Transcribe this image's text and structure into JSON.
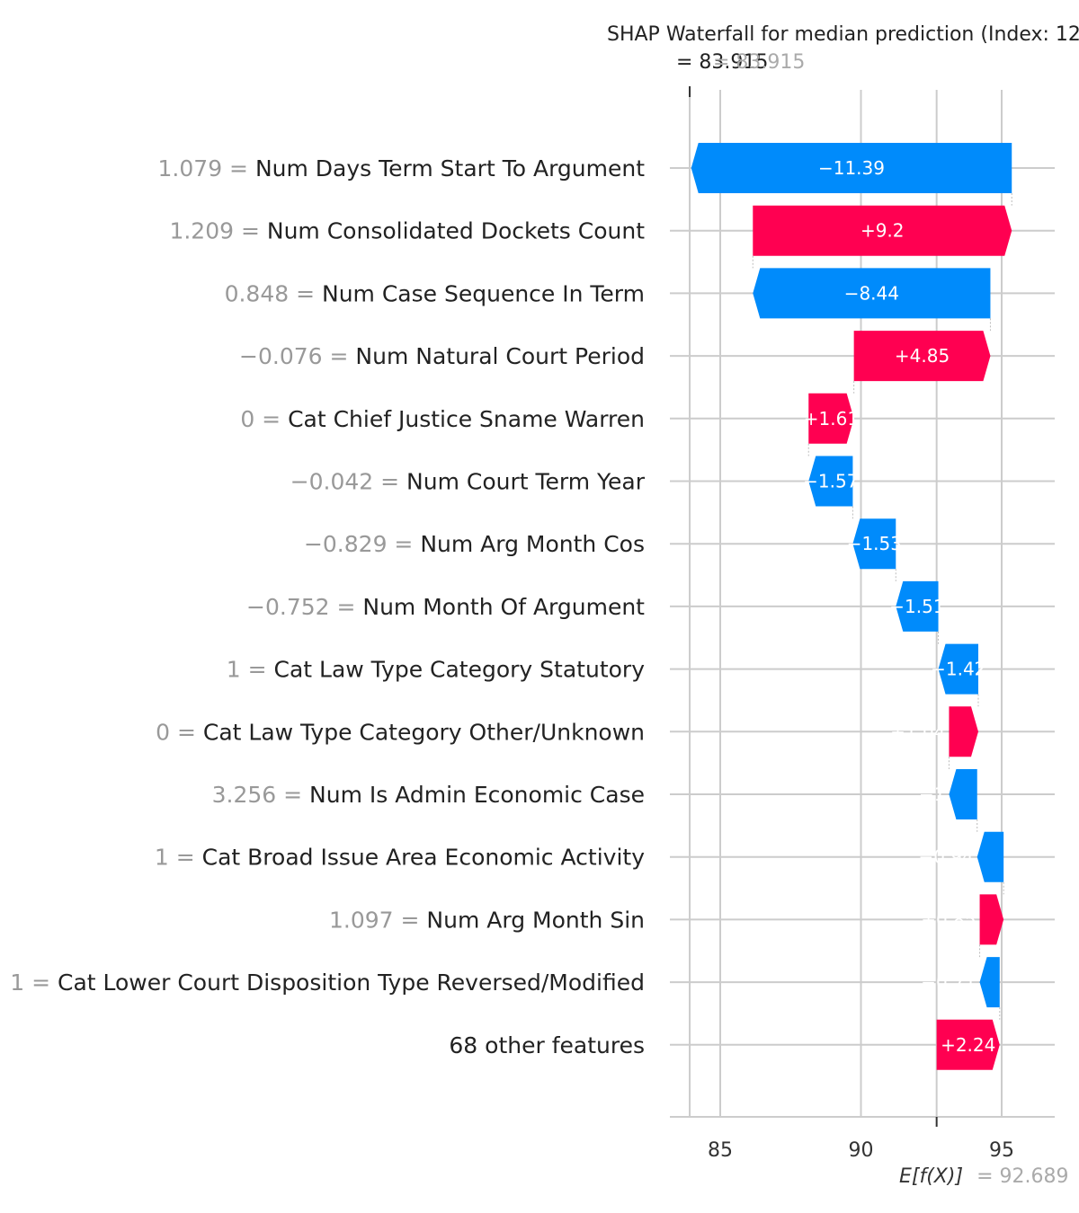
{
  "chart_data": {
    "type": "waterfall",
    "title": "SHAP Waterfall for median prediction (Index: 12",
    "fx_label": "= 83.915",
    "fx_value_label": "= 83.915",
    "expected_label": "E[f(X)]",
    "expected_value_label": "= 92.689",
    "xticks": [
      85,
      90,
      95
    ],
    "xlim": [
      83.0,
      96.8
    ],
    "base_value": 92.689,
    "f_x": 83.915,
    "colors": {
      "positive": "#ff0051",
      "negative": "#008bfb",
      "grid": "#cccccc"
    },
    "features": [
      {
        "value_text": "1.079 = ",
        "name": "Num  Days Term Start To Argument",
        "shap": -11.39,
        "label": "−11.39"
      },
      {
        "value_text": "1.209 = ",
        "name": "Num  Consolidated Dockets Count",
        "shap": 9.2,
        "label": "+9.2"
      },
      {
        "value_text": "0.848 = ",
        "name": "Num  Case Sequence In Term",
        "shap": -8.44,
        "label": "−8.44"
      },
      {
        "value_text": "−0.076 = ",
        "name": "Num  Natural Court Period",
        "shap": 4.85,
        "label": "+4.85"
      },
      {
        "value_text": "0 = ",
        "name": "Cat  Chief Justice Sname Warren",
        "shap": 1.61,
        "label": "+1.61"
      },
      {
        "value_text": "−0.042 = ",
        "name": "Num  Court Term Year",
        "shap": -1.57,
        "label": "−1.57"
      },
      {
        "value_text": "−0.829 = ",
        "name": "Num  Arg Month Cos",
        "shap": -1.53,
        "label": "−1.53"
      },
      {
        "value_text": "−0.752 = ",
        "name": "Num  Month Of Argument",
        "shap": -1.51,
        "label": "−1.51"
      },
      {
        "value_text": "1 = ",
        "name": "Cat  Law Type Category Statutory",
        "shap": -1.42,
        "label": "−1.42"
      },
      {
        "value_text": "0 = ",
        "name": "Cat  Law Type Category Other/Unknown",
        "shap": 1.04,
        "label": "+1.04"
      },
      {
        "value_text": "3.256 = ",
        "name": "Num  Is Admin Economic Case",
        "shap": -1.0,
        "label": "−1"
      },
      {
        "value_text": "1 = ",
        "name": "Cat  Broad Issue Area Economic Activity",
        "shap": -0.94,
        "label": "−0.94"
      },
      {
        "value_text": "1.097 = ",
        "name": "Num  Arg Month Sin",
        "shap": 0.85,
        "label": "+0.85"
      },
      {
        "value_text": "1 = ",
        "name": "Cat  Lower Court Disposition Type Reversed/Modified",
        "shap": -0.71,
        "label": "−0.71"
      },
      {
        "value_text": "",
        "name": "68 other features",
        "shap": 2.24,
        "label": "+2.24"
      }
    ]
  }
}
